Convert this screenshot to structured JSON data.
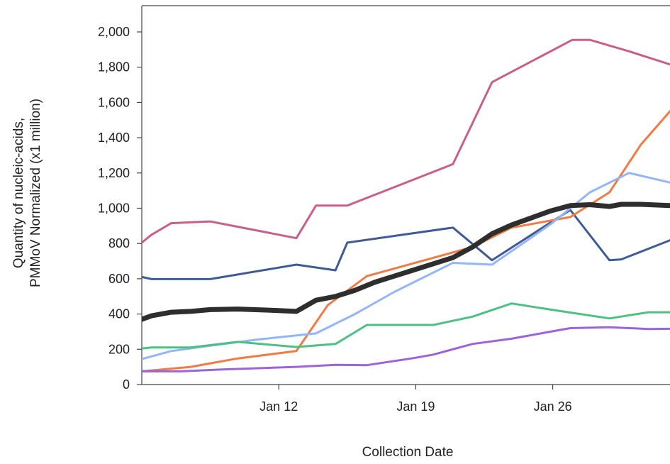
{
  "chart_data": {
    "type": "line",
    "xlabel": "Collection Date",
    "ylabel_lines": [
      "Quantity of nucleic-acids,",
      "PMMoV Normalized (x1 million)"
    ],
    "x_start": "Jan 5",
    "x_end": "Feb 2",
    "ylim": [
      0,
      2100
    ],
    "yticks": [
      0,
      200,
      400,
      600,
      800,
      1000,
      1200,
      1400,
      1600,
      1800,
      2000
    ],
    "ytick_labels": [
      "0",
      "200",
      "400",
      "600",
      "800",
      "1,000",
      "1,200",
      "1,400",
      "1,600",
      "1,800",
      "2,000"
    ],
    "xticks": [
      "Jan 12",
      "Jan 19",
      "Jan 26"
    ],
    "grid": false,
    "series": [
      {
        "color": "#c9608a",
        "width": 3,
        "x": [
          "Jan 5",
          "Jan 5.5",
          "Jan 6.5",
          "Jan 8.5",
          "Jan 12.9",
          "Jan 13.9",
          "Jan 15.5",
          "Jan 20.9",
          "Jan 22.9",
          "Jan 27",
          "Jan 27.9",
          "Jan 29.9",
          "Feb 2"
        ],
        "y": [
          805,
          850,
          915,
          925,
          830,
          1015,
          1015,
          1250,
          1715,
          1955,
          1955,
          1890,
          1780
        ]
      },
      {
        "color": "#3f5b95",
        "width": 3,
        "x": [
          "Jan 5",
          "Jan 5.5",
          "Jan 8.5",
          "Jan 12.9",
          "Jan 14.9",
          "Jan 15.5",
          "Jan 20.9",
          "Jan 22.9",
          "Jan 25.9",
          "Jan 26.9",
          "Jan 28.9",
          "Jan 29.5",
          "Feb 2"
        ],
        "y": [
          610,
          598,
          598,
          680,
          648,
          805,
          890,
          705,
          920,
          990,
          705,
          710,
          862
        ]
      },
      {
        "color": "#ef7b45",
        "width": 3,
        "x": [
          "Jan 5",
          "Jan 7.5",
          "Jan 9.9",
          "Jan 12.9",
          "Jan 14.5",
          "Jan 16.5",
          "Jan 21.9",
          "Jan 23.9",
          "Jan 26.9",
          "Jan 28.9",
          "Jan 30.5",
          "Feb 1.7",
          "Feb 2"
        ],
        "y": [
          75,
          100,
          148,
          190,
          450,
          615,
          780,
          890,
          950,
          1090,
          1360,
          1640,
          1690
        ]
      },
      {
        "color": "#94b6f8",
        "width": 3,
        "x": [
          "Jan 5",
          "Jan 6.5",
          "Jan 8.5",
          "Jan 10.9",
          "Jan 13.9",
          "Jan 15.9",
          "Jan 17.9",
          "Jan 20.9",
          "Jan 22.9",
          "Jan 25.9",
          "Jan 27.9",
          "Jan 29.9",
          "Feb 2"
        ],
        "y": [
          145,
          190,
          220,
          255,
          290,
          400,
          525,
          690,
          680,
          910,
          1090,
          1200,
          1120
        ]
      },
      {
        "color": "#2e2e2e",
        "width": 7,
        "x": [
          "Jan 5",
          "Jan 5.5",
          "Jan 6.5",
          "Jan 7.5",
          "Jan 8.5",
          "Jan 9.9",
          "Jan 11.9",
          "Jan 12.9",
          "Jan 13.9",
          "Jan 14.9",
          "Jan 15.9",
          "Jan 16.9",
          "Jan 17.9",
          "Jan 18.9",
          "Jan 19.9",
          "Jan 20.9",
          "Jan 21.9",
          "Jan 22.9",
          "Jan 23.9",
          "Jan 24.9",
          "Jan 25.9",
          "Jan 26.9",
          "Jan 27.9",
          "Jan 28.9",
          "Jan 29.5",
          "Jan 30.5",
          "Feb 2"
        ],
        "y": [
          370,
          390,
          410,
          415,
          425,
          428,
          420,
          415,
          478,
          500,
          535,
          580,
          615,
          650,
          685,
          720,
          780,
          855,
          905,
          945,
          985,
          1015,
          1020,
          1010,
          1022,
          1022,
          1010
        ]
      },
      {
        "color": "#4fc084",
        "width": 3,
        "x": [
          "Jan 5",
          "Jan 5.5",
          "Jan 7.5",
          "Jan 9.9",
          "Jan 12.9",
          "Jan 14.9",
          "Jan 16.5",
          "Jan 19.9",
          "Jan 21.9",
          "Jan 23.9",
          "Jan 25.9",
          "Jan 28.9",
          "Jan 30.9",
          "Feb 2"
        ],
        "y": [
          205,
          210,
          210,
          242,
          213,
          230,
          338,
          338,
          385,
          460,
          425,
          375,
          410,
          410
        ]
      },
      {
        "color": "#9b64d8",
        "width": 3,
        "x": [
          "Jan 5",
          "Jan 7",
          "Jan 9",
          "Jan 12.9",
          "Jan 14.9",
          "Jan 16.5",
          "Jan 18.9",
          "Jan 19.9",
          "Jan 21.9",
          "Jan 23.9",
          "Jan 25.9",
          "Jan 26.9",
          "Jan 28.9",
          "Jan 30.9",
          "Feb 2"
        ],
        "y": [
          75,
          75,
          85,
          100,
          112,
          110,
          150,
          170,
          230,
          260,
          300,
          320,
          325,
          315,
          318
        ]
      }
    ]
  }
}
